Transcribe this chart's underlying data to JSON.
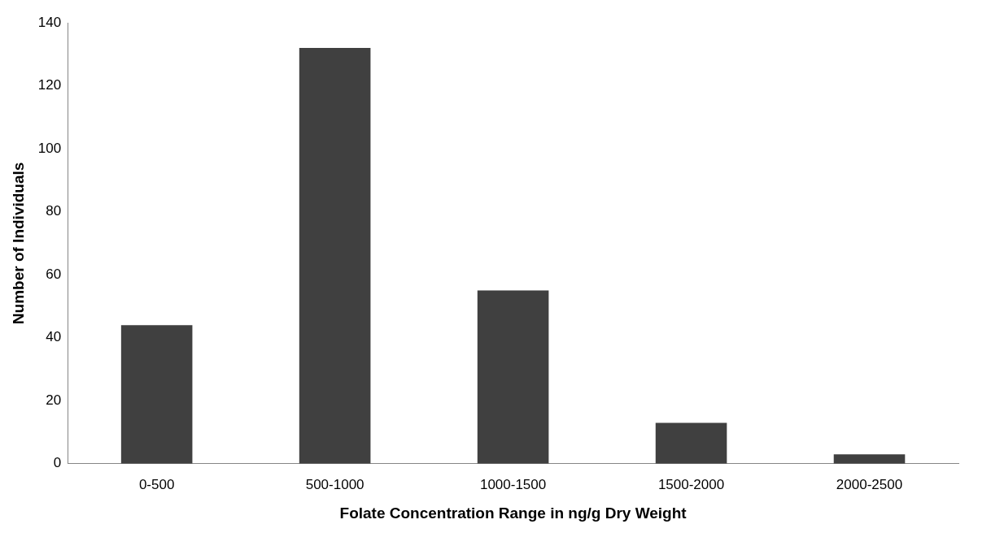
{
  "chart_data": {
    "type": "bar",
    "xlabel": "Folate Concentration Range in ng/g Dry Weight",
    "ylabel": "Number of Individuals",
    "categories": [
      "0-500",
      "500-1000",
      "1000-1500",
      "1500-2000",
      "2000-2500"
    ],
    "values": [
      44,
      132,
      55,
      13,
      3
    ],
    "color": "#404040",
    "ylim": [
      0,
      140
    ],
    "yticks": [
      0,
      20,
      40,
      60,
      80,
      100,
      120,
      140
    ],
    "grid": false,
    "legend": false
  }
}
